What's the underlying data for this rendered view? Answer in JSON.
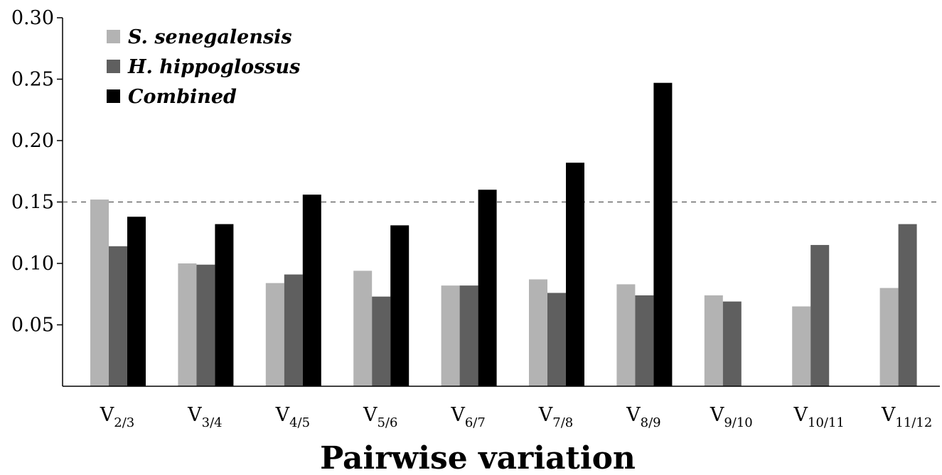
{
  "chart_data": {
    "type": "bar",
    "title": "",
    "xlabel": "Pairwise variation",
    "ylabel": "",
    "ylim": [
      0,
      0.3
    ],
    "yticks": [
      "0.05",
      "0.10",
      "0.15",
      "0.20",
      "0.25",
      "0.30"
    ],
    "ytick_values": [
      0.05,
      0.1,
      0.15,
      0.2,
      0.25,
      0.3
    ],
    "reference_line": {
      "y": 0.15,
      "style": "dashed"
    },
    "grid": false,
    "legend_position": "top-left",
    "categories": [
      {
        "main": "V",
        "sub": "2/3"
      },
      {
        "main": "V",
        "sub": "3/4"
      },
      {
        "main": "V",
        "sub": "4/5"
      },
      {
        "main": "V",
        "sub": "5/6"
      },
      {
        "main": "V",
        "sub": "6/7"
      },
      {
        "main": "V",
        "sub": "7/8"
      },
      {
        "main": "V",
        "sub": "8/9"
      },
      {
        "main": "V",
        "sub": "9/10"
      },
      {
        "main": "V",
        "sub": "10/11"
      },
      {
        "main": "V",
        "sub": "11/12"
      }
    ],
    "series": [
      {
        "name": "S. senegalensis",
        "color": "#b3b3b3",
        "values": [
          0.152,
          0.1,
          0.084,
          0.094,
          0.082,
          0.087,
          0.083,
          0.074,
          0.065,
          0.08
        ]
      },
      {
        "name": "H. hippoglossus",
        "color": "#5f5f5f",
        "values": [
          0.114,
          0.099,
          0.091,
          0.073,
          0.082,
          0.076,
          0.074,
          0.069,
          0.115,
          0.132
        ]
      },
      {
        "name": "Combined",
        "color": "#000000",
        "values": [
          0.138,
          0.132,
          0.156,
          0.131,
          0.16,
          0.182,
          0.247,
          null,
          null,
          null
        ]
      }
    ]
  }
}
